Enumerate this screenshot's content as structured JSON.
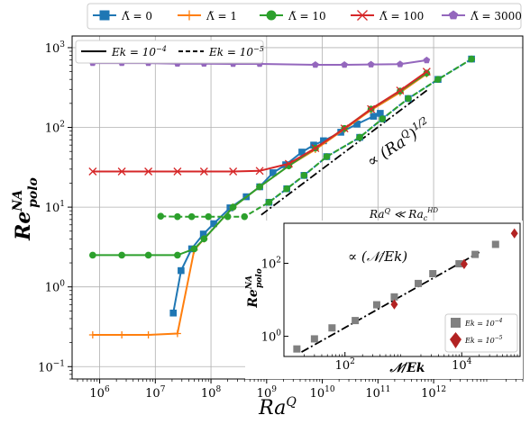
{
  "chart_data": [
    {
      "type": "line",
      "xscale": "log",
      "yscale": "log",
      "xlim": [
        320000.0,
        40000000000000.0
      ],
      "ylim": [
        0.07,
        1400
      ],
      "grid": true,
      "xlabel_base": "Ra",
      "xlabel_sup": "Q",
      "ylabel_base": "Re",
      "ylabel_sup": "NA",
      "ylabel_sub": "polo",
      "xticks": [
        {
          "value": 1000000.0,
          "base": "10",
          "exp": "6"
        },
        {
          "value": 10000000.0,
          "base": "10",
          "exp": "7"
        },
        {
          "value": 100000000.0,
          "base": "10",
          "exp": "8"
        },
        {
          "value": 1000000000.0,
          "base": "10",
          "exp": "9"
        },
        {
          "value": 10000000000.0,
          "base": "10",
          "exp": "10"
        },
        {
          "value": 100000000000.0,
          "base": "10",
          "exp": "11"
        },
        {
          "value": 1000000000000.0,
          "base": "10",
          "exp": "12"
        }
      ],
      "yticks": [
        {
          "value": 0.1,
          "base": "10",
          "exp": "−1"
        },
        {
          "value": 1,
          "base": "10",
          "exp": "0"
        },
        {
          "value": 10,
          "base": "10",
          "exp": "1"
        },
        {
          "value": 100,
          "base": "10",
          "exp": "2"
        },
        {
          "value": 1000,
          "base": "10",
          "exp": "3"
        }
      ],
      "legend_top": {
        "placement": "top",
        "entries": [
          {
            "label": "Λ̃ = 0",
            "color": "#1f77b4",
            "marker": "square"
          },
          {
            "label": "Λ̃ = 1",
            "color": "#ff7f0e",
            "marker": "plus"
          },
          {
            "label": "Λ̃ = 10",
            "color": "#2ca02c",
            "marker": "circle"
          },
          {
            "label": "Λ̃ = 100",
            "color": "#d62728",
            "marker": "x"
          },
          {
            "label": "Λ̃ = 3000",
            "color": "#9467bd",
            "marker": "pentagon"
          }
        ]
      },
      "legend_ek": {
        "placement": "upper-left",
        "entries": [
          {
            "label": "Ek = 10",
            "sup": "−4",
            "style": "solid"
          },
          {
            "label": "Ek = 10",
            "sup": "−5",
            "style": "dashed"
          }
        ]
      },
      "series": [
        {
          "key": "l0_ek4",
          "color": "#1f77b4",
          "marker": "square",
          "dash": false,
          "points": [
            [
              21000000.0,
              0.47
            ],
            [
              29000000.0,
              1.6
            ],
            [
              45000000.0,
              3.0
            ],
            [
              73000000.0,
              4.6
            ],
            [
              112000000.0,
              6.2
            ],
            [
              220000000.0,
              9.8
            ],
            [
              430000000.0,
              13.5
            ],
            [
              750000000.0,
              18.0
            ],
            [
              1300000000.0,
              27.0
            ],
            [
              2200000000.0,
              34.0
            ],
            [
              4300000000.0,
              49.0
            ],
            [
              7000000000.0,
              60.0
            ],
            [
              10500000000.0,
              68.0
            ],
            [
              21500000000.0,
              87.0
            ],
            [
              42000000000.0,
              110.0
            ],
            [
              83000000000.0,
              138.0
            ],
            [
              110000000000.0,
              150.0
            ]
          ]
        },
        {
          "key": "l0_ek5",
          "color": "#1f77b4",
          "marker": "square",
          "dash": true,
          "points": [
            [
              1100000000.0,
              11.5
            ],
            [
              2300000000.0,
              17.0
            ],
            [
              4700000000.0,
              25.0
            ],
            [
              12000000000.0,
              43.0
            ],
            [
              47000000000.0,
              75.0
            ],
            [
              120000000000.0,
              128.0
            ],
            [
              350000000000.0,
              230.0
            ],
            [
              1200000000000.0,
              400.0
            ],
            [
              4800000000000.0,
              720.0
            ]
          ]
        },
        {
          "key": "l1_ek4",
          "color": "#ff7f0e",
          "marker": "plus",
          "dash": false,
          "points": [
            [
              750000.0,
              0.25
            ],
            [
              2500000.0,
              0.25
            ],
            [
              7500000.0,
              0.25
            ],
            [
              25000000.0,
              0.26
            ],
            [
              50000000.0,
              2.9
            ],
            [
              75000000.0,
              4.0
            ],
            [
              250000000.0,
              10.0
            ],
            [
              750000000.0,
              18.0
            ],
            [
              2500000000.0,
              33.0
            ],
            [
              7500000000.0,
              53.0
            ],
            [
              25000000000.0,
              95.0
            ],
            [
              75000000000.0,
              165.0
            ],
            [
              250000000000.0,
              275.0
            ],
            [
              750000000000.0,
              470.0
            ]
          ]
        },
        {
          "key": "l10_ek4",
          "color": "#2ca02c",
          "marker": "circle",
          "dash": false,
          "points": [
            [
              750000.0,
              2.5
            ],
            [
              2500000.0,
              2.5
            ],
            [
              7500000.0,
              2.5
            ],
            [
              25000000.0,
              2.5
            ],
            [
              50000000.0,
              3.0
            ],
            [
              75000000.0,
              4.0
            ],
            [
              250000000.0,
              10.0
            ],
            [
              750000000.0,
              18.0
            ],
            [
              2500000000.0,
              33.0
            ],
            [
              7500000000.0,
              55.0
            ],
            [
              25000000000.0,
              97.0
            ],
            [
              75000000000.0,
              170.0
            ],
            [
              250000000000.0,
              285.0
            ],
            [
              750000000000.0,
              480.0
            ]
          ]
        },
        {
          "key": "l10_ek5",
          "color": "#2ca02c",
          "marker": "circle",
          "dash": true,
          "points": [
            [
              12500000.0,
              7.7
            ],
            [
              25000000.0,
              7.6
            ],
            [
              45000000.0,
              7.6
            ],
            [
              90000000.0,
              7.6
            ],
            [
              200000000.0,
              7.6
            ],
            [
              400000000.0,
              7.6
            ],
            [
              1100000000.0,
              11.5
            ],
            [
              2300000000.0,
              17.0
            ],
            [
              4700000000.0,
              25.0
            ],
            [
              12000000000.0,
              43.0
            ],
            [
              47000000000.0,
              75.0
            ],
            [
              120000000000.0,
              128.0
            ],
            [
              350000000000.0,
              230.0
            ],
            [
              1200000000000.0,
              400.0
            ],
            [
              4800000000000.0,
              720.0
            ]
          ]
        },
        {
          "key": "l100_ek4",
          "color": "#d62728",
          "marker": "x",
          "dash": false,
          "points": [
            [
              750000.0,
              28.0
            ],
            [
              2500000.0,
              28.0
            ],
            [
              7500000.0,
              28.0
            ],
            [
              25000000.0,
              28.0
            ],
            [
              75000000.0,
              28.0
            ],
            [
              250000000.0,
              28.0
            ],
            [
              750000000.0,
              28.5
            ],
            [
              2500000000.0,
              35.0
            ],
            [
              7500000000.0,
              55.0
            ],
            [
              25000000000.0,
              97.0
            ],
            [
              75000000000.0,
              170.0
            ],
            [
              250000000000.0,
              290.0
            ],
            [
              750000000000.0,
              500.0
            ]
          ]
        },
        {
          "key": "l3000_ek4",
          "color": "#9467bd",
          "marker": "pentagon",
          "dash": false,
          "points": [
            [
              750000.0,
              640.0
            ],
            [
              2500000.0,
              640.0
            ],
            [
              7500000.0,
              640.0
            ],
            [
              25000000.0,
              630.0
            ],
            [
              75000000.0,
              630.0
            ],
            [
              250000000.0,
              625.0
            ],
            [
              750000000.0,
              625.0
            ],
            [
              7500000000.0,
              610.0
            ],
            [
              25000000000.0,
              610.0
            ],
            [
              75000000000.0,
              615.0
            ],
            [
              250000000000.0,
              620.0
            ],
            [
              750000000000.0,
              695.0
            ]
          ]
        }
      ],
      "scaling_line": {
        "points": [
          [
            800000000.0,
            8.0
          ],
          [
            800000000000.0,
            300.0
          ]
        ],
        "label": "∝ (Ra",
        "label_sup": "Q",
        "label_tail": ")",
        "label_exp": "1/2"
      }
    },
    {
      "type": "scatter",
      "xscale": "log",
      "yscale": "log",
      "xlim": [
        9,
        100000.0
      ],
      "ylim": [
        0.28,
        1250
      ],
      "title_base": "Ra",
      "title_sup": "Q",
      "title_mid": " ≪ Ra",
      "title_sub": "c",
      "title_sub_sup": "HD",
      "xlabel": "𝒩/Ek",
      "ylabel_base": "Re",
      "ylabel_sup": "NA",
      "ylabel_sub": "polo",
      "xticks": [
        {
          "value": 100,
          "base": "10",
          "exp": "2"
        },
        {
          "value": 10000,
          "base": "10",
          "exp": "4"
        }
      ],
      "yticks": [
        {
          "value": 1,
          "base": "10",
          "exp": "0"
        },
        {
          "value": 100,
          "base": "10",
          "exp": "2"
        }
      ],
      "scaling_label": "∝ (𝒩/Ek)",
      "scaling_line": [
        [
          18,
          0.37
        ],
        [
          20000,
          200
        ]
      ],
      "legend": {
        "placement": "lower-right",
        "entries": [
          {
            "label": "Ek = 10",
            "sup": "−4",
            "color": "#808080",
            "marker": "square"
          },
          {
            "label": "Ek = 10",
            "sup": "−5",
            "color": "#b22222",
            "marker": "diamond"
          }
        ]
      },
      "series": [
        {
          "key": "ek4",
          "color": "#808080",
          "marker": "square",
          "points": [
            [
              15,
              0.45
            ],
            [
              30,
              0.85
            ],
            [
              60,
              1.7
            ],
            [
              150,
              2.7
            ],
            [
              350,
              7.3
            ],
            [
              700,
              12.0
            ],
            [
              1800,
              28.0
            ],
            [
              3200,
              52.0
            ],
            [
              9000,
              97.0
            ],
            [
              17000,
              175.0
            ],
            [
              38000,
              330.0
            ]
          ]
        },
        {
          "key": "ek5",
          "color": "#b22222",
          "marker": "diamond",
          "points": [
            [
              700,
              7.5
            ],
            [
              11000,
              95.0
            ],
            [
              80000,
              660.0
            ]
          ]
        }
      ]
    }
  ]
}
